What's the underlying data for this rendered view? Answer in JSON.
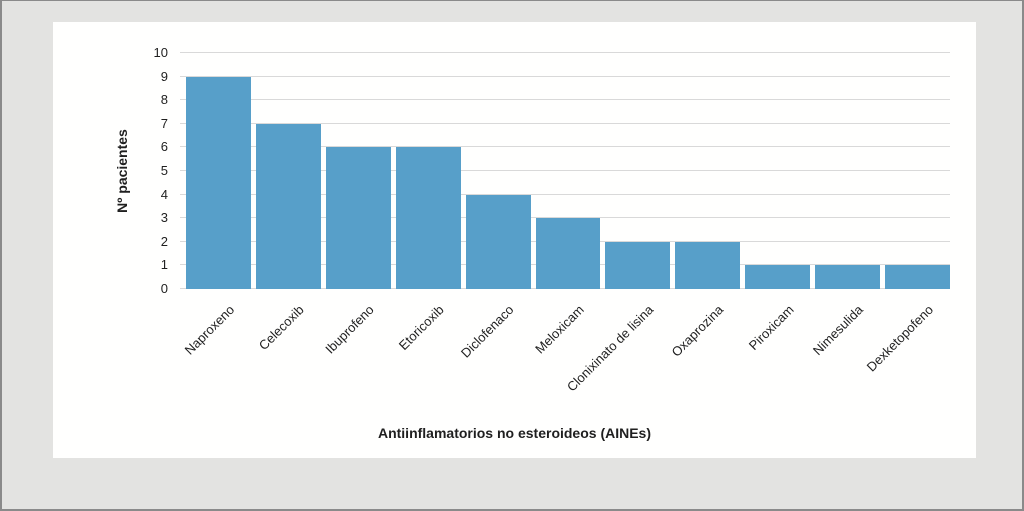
{
  "page": {
    "background_color": "#e3e3e1",
    "frame_border_color": "#8a8a8a",
    "panel_background_color": "#fffffe",
    "text_color": "#1f1f1f"
  },
  "chart_data": {
    "type": "bar",
    "title": "",
    "xlabel": "Antiinflamatorios no esteroideos (AINEs)",
    "ylabel": "Nº pacientes",
    "categories": [
      "Naproxeno",
      "Celecoxib",
      "Ibuprofeno",
      "Etoricoxib",
      "Diclofenaco",
      "Meloxicam",
      "Clonixinato de lisina",
      "Oxaprozina",
      "Piroxicam",
      "Nimesulida",
      "Dexketopofeno"
    ],
    "values": [
      9,
      7,
      6,
      6,
      4,
      3,
      2,
      2,
      1,
      1,
      1
    ],
    "ylim": [
      0,
      10
    ],
    "yticks": [
      0,
      1,
      2,
      3,
      4,
      5,
      6,
      7,
      8,
      9,
      10
    ],
    "grid": true,
    "legend": false,
    "bar_color": "#579fc9",
    "gridline_color": "#d9d9d9",
    "label_rotation_deg": 45
  }
}
